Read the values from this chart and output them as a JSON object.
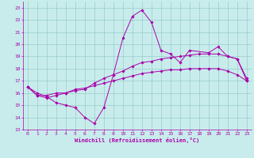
{
  "title": "",
  "xlabel": "Windchill (Refroidissement éolien,°C)",
  "xlim": [
    -0.5,
    23.5
  ],
  "ylim": [
    13,
    23.5
  ],
  "xticks": [
    0,
    1,
    2,
    3,
    4,
    5,
    6,
    7,
    8,
    9,
    10,
    11,
    12,
    13,
    14,
    15,
    16,
    17,
    18,
    19,
    20,
    21,
    22,
    23
  ],
  "yticks": [
    13,
    14,
    15,
    16,
    17,
    18,
    19,
    20,
    21,
    22,
    23
  ],
  "bg_color": "#c8ecec",
  "line_color": "#aa00aa",
  "grid_color": "#99cccc",
  "series": [
    {
      "x": [
        0,
        1,
        2,
        3,
        4,
        5,
        6,
        7,
        8,
        9,
        10,
        11,
        12,
        13,
        14,
        15,
        16,
        17,
        19,
        20,
        21,
        22,
        23
      ],
      "y": [
        16.5,
        16.0,
        15.7,
        15.2,
        15.0,
        14.8,
        14.0,
        13.5,
        14.8,
        17.5,
        20.5,
        22.3,
        22.8,
        21.8,
        19.5,
        19.2,
        18.5,
        19.5,
        19.3,
        19.8,
        19.0,
        18.8,
        17.0
      ]
    },
    {
      "x": [
        0,
        1,
        2,
        3,
        4,
        5,
        6,
        7,
        8,
        9,
        10,
        11,
        12,
        13,
        14,
        15,
        16,
        17,
        18,
        19,
        20,
        21,
        22,
        23
      ],
      "y": [
        16.5,
        15.8,
        15.6,
        15.8,
        16.0,
        16.2,
        16.3,
        16.8,
        17.2,
        17.5,
        17.8,
        18.2,
        18.5,
        18.6,
        18.8,
        18.9,
        19.0,
        19.1,
        19.2,
        19.2,
        19.2,
        19.0,
        18.8,
        17.2
      ]
    },
    {
      "x": [
        0,
        1,
        2,
        3,
        4,
        5,
        6,
        7,
        8,
        9,
        10,
        11,
        12,
        13,
        14,
        15,
        16,
        17,
        18,
        19,
        20,
        21,
        22,
        23
      ],
      "y": [
        16.5,
        15.8,
        15.8,
        16.0,
        16.0,
        16.3,
        16.4,
        16.6,
        16.8,
        17.0,
        17.2,
        17.4,
        17.6,
        17.7,
        17.8,
        17.9,
        17.9,
        18.0,
        18.0,
        18.0,
        18.0,
        17.8,
        17.5,
        17.0
      ]
    }
  ]
}
